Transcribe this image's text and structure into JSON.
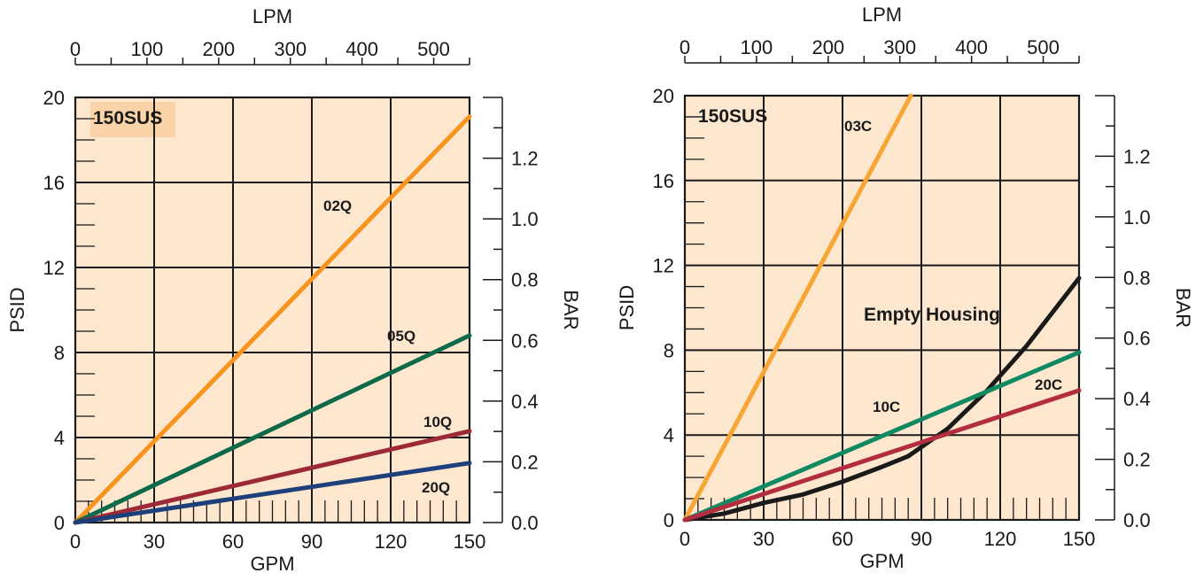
{
  "chart_data": [
    {
      "type": "line",
      "title": "150SUS",
      "xlabel": "GPM",
      "ylabel": "PSID",
      "x2label": "LPM",
      "y2label": "BAR",
      "xlim": [
        0,
        150
      ],
      "ylim": [
        0,
        20
      ],
      "x2lim": [
        0,
        550
      ],
      "y2lim": [
        0.0,
        1.4
      ],
      "x_ticks": [
        "0",
        "30",
        "60",
        "90",
        "120",
        "150"
      ],
      "y_ticks": [
        "0",
        "4",
        "8",
        "12",
        "16",
        "20"
      ],
      "x2_ticks": [
        "0",
        "100",
        "200",
        "300",
        "400",
        "500"
      ],
      "y2_ticks": [
        "0.0",
        "0.2",
        "0.4",
        "0.6",
        "0.8",
        "1.0",
        "1.2"
      ],
      "background_color": "#fde7cf",
      "grid": true,
      "series": [
        {
          "name": "02Q",
          "color": "#f7941d",
          "x": [
            0,
            150
          ],
          "y": [
            0,
            19.1
          ]
        },
        {
          "name": "05Q",
          "color": "#0f6a4a",
          "x": [
            0,
            150
          ],
          "y": [
            0,
            8.8
          ]
        },
        {
          "name": "10Q",
          "color": "#9c2a36",
          "x": [
            0,
            150
          ],
          "y": [
            0,
            4.3
          ]
        },
        {
          "name": "20Q",
          "color": "#1d3f7a",
          "x": [
            0,
            150
          ],
          "y": [
            0,
            2.8
          ]
        }
      ]
    },
    {
      "type": "line",
      "title": "150SUS",
      "xlabel": "GPM",
      "ylabel": "PSID",
      "x2label": "LPM",
      "y2label": "BAR",
      "xlim": [
        0,
        150
      ],
      "ylim": [
        0,
        20
      ],
      "x2lim": [
        0,
        550
      ],
      "y2lim": [
        0.0,
        1.4
      ],
      "x_ticks": [
        "0",
        "30",
        "60",
        "90",
        "120",
        "150"
      ],
      "y_ticks": [
        "0",
        "4",
        "8",
        "12",
        "16",
        "20"
      ],
      "x2_ticks": [
        "0",
        "100",
        "200",
        "300",
        "400",
        "500"
      ],
      "y2_ticks": [
        "0.0",
        "0.2",
        "0.4",
        "0.6",
        "0.8",
        "1.0",
        "1.2"
      ],
      "background_color": "#fde7cf",
      "grid": true,
      "series": [
        {
          "name": "03C",
          "color": "#f9a533",
          "x": [
            0,
            86
          ],
          "y": [
            0,
            20
          ]
        },
        {
          "name": "Empty Housing",
          "color": "#1a1a1a",
          "x": [
            0,
            15,
            30,
            45,
            60,
            75,
            85,
            100,
            115,
            130,
            150
          ],
          "y": [
            0,
            0.3,
            0.8,
            1.2,
            1.8,
            2.5,
            3.0,
            4.3,
            6.1,
            8.2,
            11.4
          ]
        },
        {
          "name": "10C",
          "color": "#0f8a62",
          "x": [
            0,
            150
          ],
          "y": [
            0,
            7.9
          ]
        },
        {
          "name": "20C",
          "color": "#b22d3f",
          "x": [
            0,
            150
          ],
          "y": [
            0,
            6.1
          ]
        }
      ]
    }
  ]
}
